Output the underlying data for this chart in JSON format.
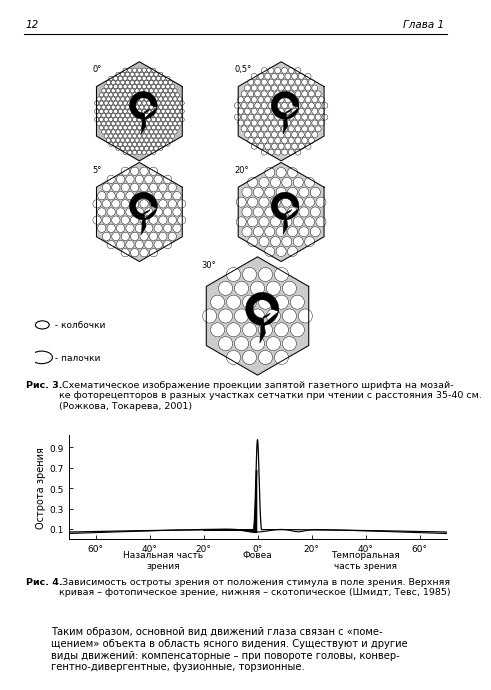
{
  "page_number": "12",
  "chapter": "Глава 1",
  "fig3_caption_bold": "Рис. 3.",
  "fig3_caption_rest": " Схематическое изображение проекции запятой газетного шрифта на мозай-\nке фоторецепторов в разных участках сетчатки при чтении с расстояния 35-40 см.\n(Рожкова, Токарева, 2001)",
  "fig4_caption_bold": "Рис. 4.",
  "fig4_caption_rest": " Зависимость остроты зрения от положения стимула в поле зрения. Верхняя\nкривая – фотопическое зрение, нижняя – скотопическое (Шмидт, Тевс, 1985)",
  "paragraph_text": "Таким образом, основной вид движений глаза связан с «поме-\nщением» объекта в область ясного видения. Существуют и другие\nвиды движений: компенсаторные – при повороте головы, конвер-\nгентно-дивергентные, фузионные, торзионные.",
  "legend_cone": " - колбочки",
  "legend_rod": " - палочки",
  "ylabel": "Острота зрения",
  "xlabel_left": "Назальная часть\nзрения",
  "xlabel_center": "Фовеа",
  "xlabel_right": "Темпоральная\nчасть зрения",
  "ytick_labels": [
    "0.1",
    "0.3",
    "0.5",
    "0.7",
    "0.9"
  ],
  "ytick_values": [
    0.1,
    0.3,
    0.5,
    0.7,
    0.9
  ],
  "xtick_positions": [
    -60,
    -40,
    -20,
    0,
    20,
    40,
    60
  ],
  "xtick_labels": [
    "60°",
    "40°",
    "20°",
    "0°",
    "20°",
    "40°",
    "60°"
  ],
  "bg_color": "#ffffff",
  "mosaic_bg": "#cccccc",
  "mosaic_labels": [
    "0°",
    "0,5°",
    "5°",
    "20°",
    "30°"
  ],
  "mosaic_cell_sizes": [
    0.048,
    0.068,
    0.095,
    0.115,
    0.135
  ],
  "mosaic_n_rows": [
    14,
    10,
    7,
    6,
    5
  ]
}
